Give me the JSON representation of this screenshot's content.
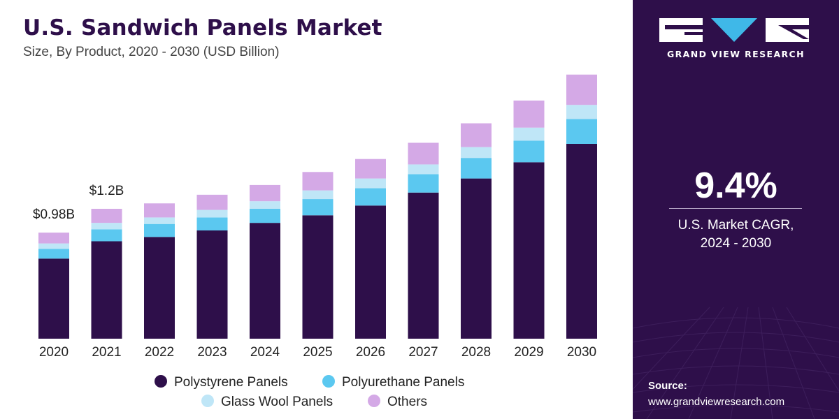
{
  "header": {
    "title": "U.S. Sandwich Panels Market",
    "subtitle": "Size, By Product, 2020 - 2030 (USD Billion)"
  },
  "colors": {
    "polystyrene": "#2e0f4a",
    "polyurethane": "#5bc8f0",
    "glass_wool": "#bfe6f7",
    "others": "#d4a9e6",
    "panel_bg": "#2e0f4a",
    "logo_accent": "#3fb8e8"
  },
  "chart_data": {
    "type": "bar",
    "stacked": true,
    "categories": [
      "2020",
      "2021",
      "2022",
      "2023",
      "2024",
      "2025",
      "2026",
      "2027",
      "2028",
      "2029",
      "2030"
    ],
    "series": [
      {
        "name": "Polystyrene Panels",
        "values": [
          0.74,
          0.9,
          0.94,
          1.0,
          1.07,
          1.14,
          1.23,
          1.35,
          1.48,
          1.63,
          1.8
        ]
      },
      {
        "name": "Polyurethane Panels",
        "values": [
          0.09,
          0.11,
          0.12,
          0.12,
          0.13,
          0.15,
          0.16,
          0.17,
          0.19,
          0.2,
          0.23
        ]
      },
      {
        "name": "Glass Wool Panels",
        "values": [
          0.05,
          0.06,
          0.06,
          0.07,
          0.07,
          0.08,
          0.09,
          0.09,
          0.1,
          0.12,
          0.13
        ]
      },
      {
        "name": "Others",
        "values": [
          0.1,
          0.13,
          0.13,
          0.14,
          0.15,
          0.17,
          0.18,
          0.2,
          0.22,
          0.25,
          0.28
        ]
      }
    ],
    "data_labels": [
      {
        "category": "2020",
        "text": "$0.98B"
      },
      {
        "category": "2021",
        "text": "$1.2B"
      }
    ],
    "legend": {
      "placement": "bottom"
    },
    "grid": false
  },
  "cagr": {
    "value": "9.4%",
    "label_line1": "U.S. Market CAGR,",
    "label_line2": "2024 - 2030"
  },
  "brand": {
    "name": "GRAND VIEW RESEARCH"
  },
  "source": {
    "title": "Source:",
    "url": "www.grandviewresearch.com"
  }
}
